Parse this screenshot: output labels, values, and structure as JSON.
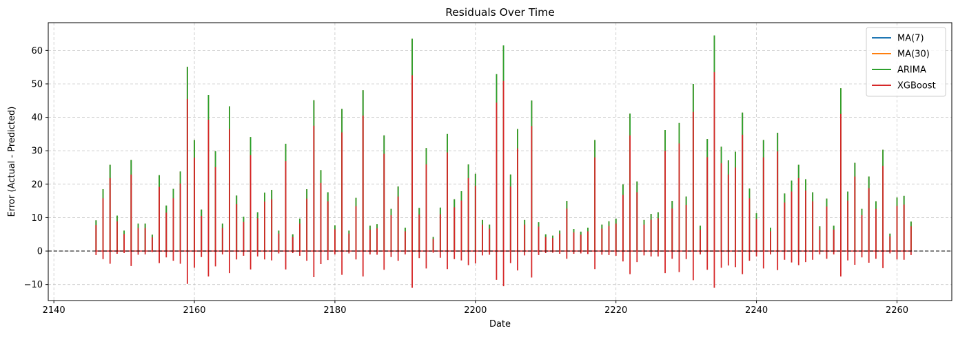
{
  "chart_data": {
    "type": "line",
    "title": "Residuals Over Time",
    "xlabel": "Date",
    "ylabel": "Error (Actual - Predicted)",
    "xlim": [
      2139.2,
      2267.8
    ],
    "ylim": [
      -14.8,
      68.3
    ],
    "xticks": [
      2140,
      2160,
      2180,
      2200,
      2220,
      2240,
      2260
    ],
    "yticks": [
      -10,
      0,
      10,
      20,
      30,
      40,
      50,
      60
    ],
    "grid": true,
    "legend_position": "top-right",
    "zero_line": 0,
    "x": [
      2146,
      2147,
      2148,
      2149,
      2150,
      2151,
      2152,
      2153,
      2154,
      2155,
      2156,
      2157,
      2158,
      2159,
      2160,
      2161,
      2162,
      2163,
      2164,
      2165,
      2166,
      2167,
      2168,
      2169,
      2170,
      2171,
      2172,
      2173,
      2174,
      2175,
      2176,
      2177,
      2178,
      2179,
      2180,
      2181,
      2182,
      2183,
      2184,
      2185,
      2186,
      2187,
      2188,
      2189,
      2190,
      2191,
      2192,
      2193,
      2194,
      2195,
      2196,
      2197,
      2198,
      2199,
      2200,
      2201,
      2202,
      2203,
      2204,
      2205,
      2206,
      2207,
      2208,
      2209,
      2210,
      2211,
      2212,
      2213,
      2214,
      2215,
      2216,
      2217,
      2218,
      2219,
      2220,
      2221,
      2222,
      2223,
      2224,
      2225,
      2226,
      2227,
      2228,
      2229,
      2230,
      2231,
      2232,
      2233,
      2234,
      2235,
      2236,
      2237,
      2238,
      2239,
      2240,
      2241,
      2242,
      2243,
      2244,
      2245,
      2246,
      2247,
      2248,
      2249,
      2250,
      2251,
      2252,
      2253,
      2254,
      2255,
      2256,
      2257,
      2258,
      2259,
      2260,
      2261,
      2262
    ],
    "series": [
      {
        "name": "MA(7)",
        "color": "#1f77b4",
        "values": [
          9.2,
          18.5,
          25.8,
          10.6,
          6.1,
          27.2,
          8.2,
          8.2,
          4.9,
          22.7,
          13.6,
          18.6,
          23.8,
          55.1,
          33.2,
          12.4,
          46.7,
          29.9,
          8.2,
          43.3,
          16.6,
          10.3,
          34.1,
          11.6,
          17.5,
          18.3,
          6.1,
          32.1,
          5.0,
          9.7,
          18.5,
          45.1,
          24.2,
          17.6,
          7.7,
          42.5,
          6.1,
          15.9,
          48.1,
          7.6,
          8.0,
          34.6,
          12.6,
          19.3,
          7.0,
          63.5,
          12.9,
          30.8,
          4.2,
          13.0,
          35.0,
          15.5,
          17.9,
          25.9,
          23.1,
          9.3,
          7.9,
          52.9,
          61.5,
          22.9,
          36.5,
          9.3,
          45.0,
          8.6,
          5.0,
          4.6,
          6.1,
          15.0,
          6.6,
          5.8,
          7.0,
          33.2,
          7.9,
          8.9,
          9.7,
          19.9,
          41.1,
          20.8,
          9.3,
          11.1,
          11.6,
          36.2,
          15.0,
          38.3,
          16.3,
          50.0,
          7.6,
          33.5,
          64.5,
          31.2,
          27.1,
          29.7,
          41.4,
          18.7,
          11.3,
          33.2,
          7.0,
          35.4,
          17.2,
          21.1,
          25.8,
          21.5,
          17.6,
          7.4,
          15.7,
          7.6,
          48.7,
          17.8,
          26.4,
          12.6,
          22.3,
          14.9,
          30.3,
          5.2,
          16.0,
          16.5,
          8.8
        ]
      },
      {
        "name": "MA(30)",
        "color": "#ff7f0e",
        "values": [
          9.2,
          18.5,
          25.8,
          10.6,
          6.1,
          27.2,
          8.2,
          8.2,
          4.9,
          22.7,
          13.6,
          18.6,
          23.8,
          55.1,
          33.2,
          12.4,
          46.7,
          29.9,
          8.2,
          43.3,
          16.6,
          10.3,
          34.1,
          11.6,
          17.5,
          18.3,
          6.1,
          32.1,
          5.0,
          9.7,
          18.5,
          45.1,
          24.2,
          17.6,
          7.7,
          42.5,
          6.1,
          15.9,
          48.1,
          7.6,
          8.0,
          34.6,
          12.6,
          19.3,
          7.0,
          63.5,
          12.9,
          30.8,
          4.2,
          13.0,
          35.0,
          15.5,
          17.9,
          25.9,
          23.1,
          9.3,
          7.9,
          52.9,
          61.5,
          22.9,
          36.5,
          9.3,
          45.0,
          8.6,
          5.0,
          4.6,
          6.1,
          15.0,
          6.6,
          5.8,
          7.0,
          33.2,
          7.9,
          8.9,
          9.7,
          19.9,
          41.1,
          20.8,
          9.3,
          11.1,
          11.6,
          36.2,
          15.0,
          38.3,
          16.3,
          50.0,
          7.6,
          33.5,
          64.5,
          31.2,
          27.1,
          29.7,
          41.4,
          18.7,
          11.3,
          33.2,
          7.0,
          35.4,
          17.2,
          21.1,
          25.8,
          21.5,
          17.6,
          7.4,
          15.7,
          7.6,
          48.7,
          17.8,
          26.4,
          12.6,
          22.3,
          14.9,
          30.3,
          5.2,
          16.0,
          16.5,
          8.8
        ]
      },
      {
        "name": "ARIMA",
        "color": "#2ca02c",
        "values": [
          9.2,
          18.5,
          25.8,
          10.6,
          6.1,
          27.2,
          8.2,
          8.2,
          4.9,
          22.7,
          13.6,
          18.6,
          23.8,
          55.1,
          33.2,
          12.4,
          46.7,
          29.9,
          8.2,
          43.3,
          16.6,
          10.3,
          34.1,
          11.6,
          17.5,
          18.3,
          6.1,
          32.1,
          5.0,
          9.7,
          18.5,
          45.1,
          24.2,
          17.6,
          7.7,
          42.5,
          6.1,
          15.9,
          48.1,
          7.6,
          8.0,
          34.6,
          12.6,
          19.3,
          7.0,
          63.5,
          12.9,
          30.8,
          4.2,
          13.0,
          35.0,
          15.5,
          17.9,
          25.9,
          23.1,
          9.3,
          7.9,
          52.9,
          61.5,
          22.9,
          36.5,
          9.3,
          45.0,
          8.6,
          5.0,
          4.6,
          6.1,
          15.0,
          6.6,
          5.8,
          7.0,
          33.2,
          7.9,
          8.9,
          9.7,
          19.9,
          41.1,
          20.8,
          9.3,
          11.1,
          11.6,
          36.2,
          15.0,
          38.3,
          16.3,
          50.0,
          7.6,
          33.5,
          64.5,
          31.2,
          27.1,
          29.7,
          41.4,
          18.7,
          11.3,
          33.2,
          7.0,
          35.4,
          17.2,
          21.1,
          25.8,
          21.5,
          17.6,
          7.4,
          15.7,
          7.6,
          48.7,
          17.8,
          26.4,
          12.6,
          22.3,
          14.9,
          30.3,
          5.2,
          16.0,
          16.5,
          8.8
        ]
      },
      {
        "name": "XGBoost",
        "color": "#d62728",
        "values": [
          7.8,
          15.8,
          21.8,
          8.9,
          5.1,
          22.9,
          6.9,
          6.9,
          4.1,
          19.2,
          11.5,
          15.8,
          20.2,
          45.5,
          27.9,
          10.5,
          39.3,
          25.1,
          6.9,
          36.5,
          14.0,
          8.7,
          28.7,
          9.8,
          14.8,
          15.5,
          5.2,
          26.9,
          4.2,
          8.2,
          15.7,
          37.5,
          20.4,
          14.9,
          6.5,
          35.5,
          5.2,
          13.4,
          40.5,
          6.4,
          6.8,
          29.1,
          10.7,
          16.3,
          5.9,
          52.6,
          10.9,
          25.9,
          3.6,
          11.0,
          29.5,
          13.1,
          15.1,
          21.8,
          19.5,
          7.9,
          6.7,
          44.4,
          50.9,
          19.3,
          30.7,
          7.9,
          37.4,
          7.3,
          4.2,
          3.9,
          5.2,
          12.7,
          5.6,
          4.9,
          5.9,
          28.0,
          6.7,
          7.5,
          8.2,
          16.8,
          34.6,
          17.6,
          7.9,
          9.4,
          9.8,
          30.0,
          12.7,
          32.2,
          13.8,
          41.6,
          6.4,
          28.1,
          53.5,
          26.3,
          22.9,
          25.0,
          34.8,
          15.8,
          9.6,
          28.0,
          5.9,
          29.8,
          14.5,
          17.8,
          21.8,
          18.1,
          14.9,
          6.3,
          13.3,
          6.4,
          41.0,
          15.1,
          22.3,
          10.7,
          18.8,
          12.6,
          25.5,
          4.4,
          13.5,
          13.9,
          7.4
        ]
      }
    ],
    "negative_residuals": [
      -1.2,
      -2.4,
      -3.8,
      -0.8,
      -0.6,
      -4.5,
      -1.1,
      -1.0,
      -0.3,
      -3.6,
      -1.9,
      -2.9,
      -3.8,
      -9.8,
      -5.0,
      -1.8,
      -7.6,
      -4.6,
      -1.0,
      -6.6,
      -2.5,
      -1.4,
      -5.5,
      -1.6,
      -2.5,
      -2.8,
      -0.7,
      -5.5,
      -0.6,
      -1.4,
      -2.9,
      -7.8,
      -3.9,
      -2.7,
      -1.0,
      -7.1,
      -0.7,
      -2.5,
      -7.6,
      -1.0,
      -1.1,
      -5.6,
      -1.8,
      -2.9,
      -1.0,
      -11.0,
      -2.1,
      -5.2,
      -0.5,
      -2.0,
      -5.4,
      -2.4,
      -2.8,
      -4.2,
      -3.7,
      -1.3,
      -1.1,
      -8.6,
      -10.5,
      -3.6,
      -5.8,
      -1.3,
      -7.9,
      -1.2,
      -0.6,
      -0.5,
      -0.8,
      -2.3,
      -0.8,
      -0.7,
      -0.9,
      -5.4,
      -1.1,
      -1.2,
      -1.4,
      -3.1,
      -6.9,
      -3.3,
      -1.3,
      -1.6,
      -1.6,
      -6.6,
      -2.3,
      -6.3,
      -2.4,
      -8.7,
      -1.0,
      -5.6,
      -11.0,
      -5.0,
      -4.3,
      -4.8,
      -6.9,
      -2.9,
      -1.6,
      -5.2,
      -1.0,
      -5.7,
      -2.6,
      -3.4,
      -4.2,
      -3.3,
      -2.6,
      -1.0,
      -2.3,
      -1.0,
      -7.6,
      -2.8,
      -4.1,
      -1.9,
      -3.5,
      -2.3,
      -5.1,
      -0.7,
      -2.5,
      -2.6,
      -1.2
    ]
  }
}
